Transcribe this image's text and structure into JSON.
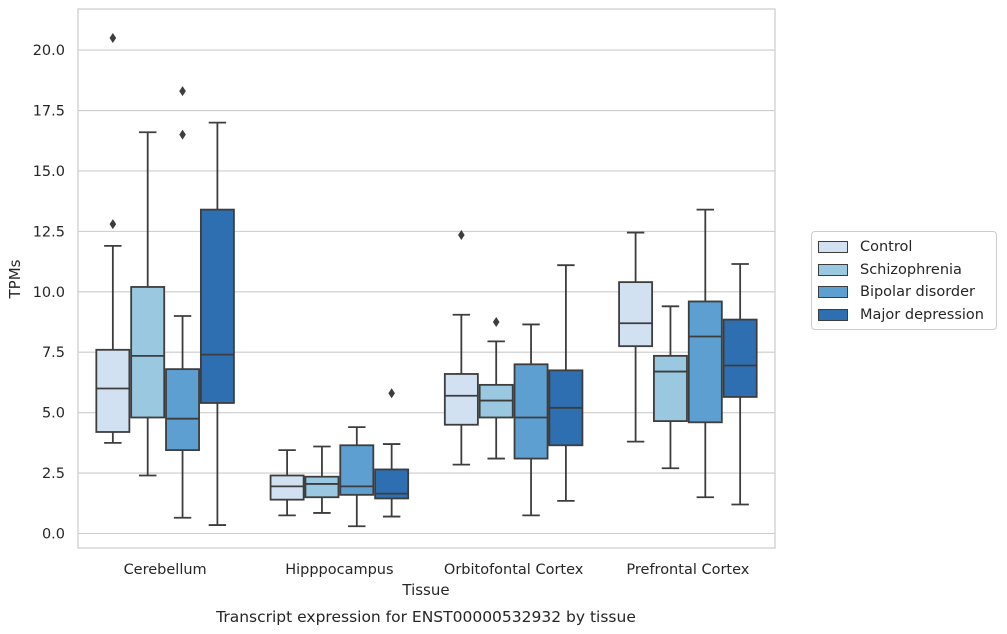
{
  "chart_data": {
    "type": "box",
    "title": "",
    "xlabel": "Tissue",
    "ylabel": "TPMs",
    "caption": "Transcript expression for ENST00000532932 by tissue",
    "ylim": [
      -0.6,
      21.7
    ],
    "yticks": [
      "0.0",
      "2.5",
      "5.0",
      "7.5",
      "10.0",
      "12.5",
      "15.0",
      "17.5",
      "20.0"
    ],
    "grid": "horizontal",
    "legend_position": "right",
    "categories": [
      "Cerebellum",
      "Hipppocampus",
      "Orbitofontal Cortex",
      "Prefrontal Cortex"
    ],
    "series": [
      {
        "name": "Control",
        "color": "#d1e1f1",
        "boxes": [
          {
            "whislo": 3.75,
            "q1": 4.2,
            "med": 6.0,
            "q3": 7.6,
            "whishi": 11.9,
            "fliers": [
              12.8,
              20.5
            ]
          },
          {
            "whislo": 0.75,
            "q1": 1.4,
            "med": 1.95,
            "q3": 2.4,
            "whishi": 3.45,
            "fliers": []
          },
          {
            "whislo": 2.85,
            "q1": 4.5,
            "med": 5.7,
            "q3": 6.6,
            "whishi": 9.05,
            "fliers": [
              12.35
            ]
          },
          {
            "whislo": 3.8,
            "q1": 7.75,
            "med": 8.7,
            "q3": 10.4,
            "whishi": 12.45,
            "fliers": []
          }
        ]
      },
      {
        "name": "Schizophrenia",
        "color": "#9ac8e0",
        "boxes": [
          {
            "whislo": 2.4,
            "q1": 4.8,
            "med": 7.35,
            "q3": 10.2,
            "whishi": 16.6,
            "fliers": []
          },
          {
            "whislo": 0.85,
            "q1": 1.5,
            "med": 2.05,
            "q3": 2.35,
            "whishi": 3.6,
            "fliers": []
          },
          {
            "whislo": 3.1,
            "q1": 4.8,
            "med": 5.5,
            "q3": 6.15,
            "whishi": 7.95,
            "fliers": [
              8.75
            ]
          },
          {
            "whislo": 2.7,
            "q1": 4.65,
            "med": 6.7,
            "q3": 7.35,
            "whishi": 9.4,
            "fliers": []
          }
        ]
      },
      {
        "name": "Bipolar disorder",
        "color": "#5c9fd0",
        "boxes": [
          {
            "whislo": 0.65,
            "q1": 3.45,
            "med": 4.75,
            "q3": 6.8,
            "whishi": 9.0,
            "fliers": [
              16.5,
              18.3
            ]
          },
          {
            "whislo": 0.3,
            "q1": 1.6,
            "med": 1.95,
            "q3": 3.65,
            "whishi": 4.4,
            "fliers": []
          },
          {
            "whislo": 0.75,
            "q1": 3.1,
            "med": 4.8,
            "q3": 7.0,
            "whishi": 8.65,
            "fliers": []
          },
          {
            "whislo": 1.5,
            "q1": 4.6,
            "med": 8.15,
            "q3": 9.6,
            "whishi": 13.4,
            "fliers": []
          }
        ]
      },
      {
        "name": "Major depression",
        "color": "#2e6fb2",
        "boxes": [
          {
            "whislo": 0.35,
            "q1": 5.4,
            "med": 7.4,
            "q3": 13.4,
            "whishi": 17.0,
            "fliers": []
          },
          {
            "whislo": 0.7,
            "q1": 1.45,
            "med": 1.65,
            "q3": 2.65,
            "whishi": 3.7,
            "fliers": [
              5.8
            ]
          },
          {
            "whislo": 1.35,
            "q1": 3.65,
            "med": 5.2,
            "q3": 6.75,
            "whishi": 11.1,
            "fliers": []
          },
          {
            "whislo": 1.2,
            "q1": 5.65,
            "med": 6.95,
            "q3": 8.85,
            "whishi": 11.15,
            "fliers": []
          }
        ]
      }
    ]
  }
}
